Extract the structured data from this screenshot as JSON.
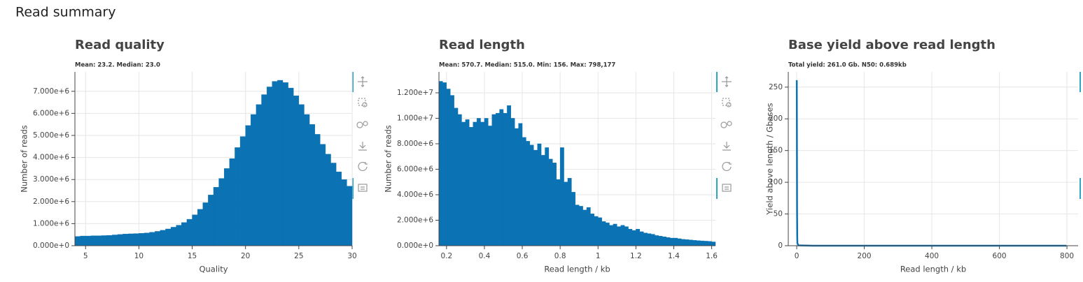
{
  "header": {
    "title": "Read summary"
  },
  "chart_data": [
    {
      "type": "histogram",
      "title": "Read quality",
      "subtitle": "Mean: 23.2. Median: 23.0",
      "x_label": "Quality",
      "y_label": "Number of reads",
      "color": "#0b72b3",
      "grid": true,
      "bins": [
        4,
        4.5,
        5,
        5.5,
        6,
        6.5,
        7,
        7.5,
        8,
        8.5,
        9,
        9.5,
        10,
        10.5,
        11,
        11.5,
        12,
        12.5,
        13,
        13.5,
        14,
        14.5,
        15,
        15.5,
        16,
        16.5,
        17,
        17.5,
        18,
        18.5,
        19,
        19.5,
        20,
        20.5,
        21,
        21.5,
        22,
        22.5,
        23,
        23.5,
        24,
        24.5,
        25,
        25.5,
        26,
        26.5,
        27,
        27.5,
        28,
        28.5,
        29,
        29.5,
        30
      ],
      "values": [
        420000,
        440000,
        440000,
        450000,
        450000,
        460000,
        470000,
        490000,
        510000,
        530000,
        540000,
        550000,
        560000,
        580000,
        610000,
        650000,
        700000,
        760000,
        840000,
        930000,
        1050000,
        1200000,
        1400000,
        1650000,
        1950000,
        2300000,
        2650000,
        3050000,
        3500000,
        3950000,
        4450000,
        4950000,
        5450000,
        5950000,
        6400000,
        6850000,
        7200000,
        7450000,
        7500000,
        7400000,
        7150000,
        6800000,
        6400000,
        5950000,
        5500000,
        5050000,
        4600000,
        4150000,
        3750000,
        3350000,
        3000000,
        2700000
      ],
      "xlim": [
        4,
        30
      ],
      "xticks": [
        5,
        10,
        15,
        20,
        25,
        30
      ],
      "ylim": [
        0,
        7880000
      ],
      "yticks": [
        {
          "value": 0,
          "label": "0.000e+0"
        },
        {
          "value": 1000000,
          "label": "1.000e+6"
        },
        {
          "value": 2000000,
          "label": "2.000e+6"
        },
        {
          "value": 3000000,
          "label": "3.000e+6"
        },
        {
          "value": 4000000,
          "label": "4.000e+6"
        },
        {
          "value": 5000000,
          "label": "5.000e+6"
        },
        {
          "value": 6000000,
          "label": "6.000e+6"
        },
        {
          "value": 7000000,
          "label": "7.000e+6"
        }
      ]
    },
    {
      "type": "histogram",
      "title": "Read length",
      "subtitle": "Mean: 570.7. Median: 515.0. Min: 156. Max: 798,177",
      "x_label": "Read length / kb",
      "y_label": "Number of reads",
      "color": "#0b72b3",
      "grid": true,
      "bins": [
        0.16,
        0.18,
        0.2,
        0.22,
        0.24,
        0.26,
        0.28,
        0.3,
        0.32,
        0.34,
        0.36,
        0.38,
        0.4,
        0.42,
        0.44,
        0.46,
        0.48,
        0.5,
        0.52,
        0.54,
        0.56,
        0.58,
        0.6,
        0.62,
        0.64,
        0.66,
        0.68,
        0.7,
        0.72,
        0.74,
        0.76,
        0.78,
        0.8,
        0.82,
        0.84,
        0.86,
        0.88,
        0.9,
        0.92,
        0.94,
        0.96,
        0.98,
        1,
        1.02,
        1.04,
        1.06,
        1.08,
        1.1,
        1.12,
        1.14,
        1.16,
        1.18,
        1.2,
        1.22,
        1.24,
        1.26,
        1.28,
        1.3,
        1.32,
        1.34,
        1.36,
        1.38,
        1.4,
        1.42,
        1.44,
        1.46,
        1.48,
        1.5,
        1.52,
        1.54,
        1.56,
        1.58,
        1.6,
        1.62
      ],
      "values": [
        12900000,
        12800000,
        12300000,
        11800000,
        10800000,
        10300000,
        9700000,
        9900000,
        9300000,
        9700000,
        10000000,
        9700000,
        10000000,
        9400000,
        10300000,
        10400000,
        10700000,
        10400000,
        11000000,
        10000000,
        9200000,
        9600000,
        8500000,
        8200000,
        7900000,
        7500000,
        8000000,
        7100000,
        7700000,
        6800000,
        6500000,
        5200000,
        7700000,
        5000000,
        5300000,
        4200000,
        3200000,
        3100000,
        2800000,
        3000000,
        2500000,
        2300000,
        2200000,
        1900000,
        1800000,
        1600000,
        1700000,
        1500000,
        1600000,
        1500000,
        1300000,
        1200000,
        1300000,
        1100000,
        1000000,
        950000,
        900000,
        800000,
        750000,
        700000,
        650000,
        600000,
        600000,
        550000,
        500000,
        480000,
        450000,
        420000,
        400000,
        380000,
        360000,
        340000,
        300000
      ],
      "xlim": [
        0.16,
        1.62
      ],
      "xticks": [
        0.2,
        0.4,
        0.6,
        0.8,
        1,
        1.2,
        1.4,
        1.6
      ],
      "ylim": [
        0,
        13640000
      ],
      "yticks": [
        {
          "value": 0,
          "label": "0.000e+0"
        },
        {
          "value": 2000000,
          "label": "2.000e+6"
        },
        {
          "value": 4000000,
          "label": "4.000e+6"
        },
        {
          "value": 6000000,
          "label": "6.000e+6"
        },
        {
          "value": 8000000,
          "label": "8.000e+6"
        },
        {
          "value": 10000000,
          "label": "1.000e+7"
        },
        {
          "value": 12000000,
          "label": "1.200e+7"
        }
      ]
    },
    {
      "type": "line",
      "title": "Base yield above read length",
      "subtitle": "Total yield: 261.0 Gb.  N50: 0.689kb",
      "x_label": "Read length / kb",
      "y_label": "Yield above length / Gbases",
      "color": "#0b72b3",
      "grid": true,
      "x": [
        0.156,
        0.5,
        1,
        1.5,
        2,
        5,
        50,
        798.177
      ],
      "values": [
        261,
        190,
        60,
        15,
        4,
        0.5,
        0.05,
        0
      ],
      "xlim": [
        -25,
        833
      ],
      "xticks": [
        0,
        200,
        400,
        600,
        800
      ],
      "ylim": [
        0,
        274
      ],
      "yticks": [
        0,
        50,
        100,
        150,
        200,
        250
      ]
    }
  ]
}
